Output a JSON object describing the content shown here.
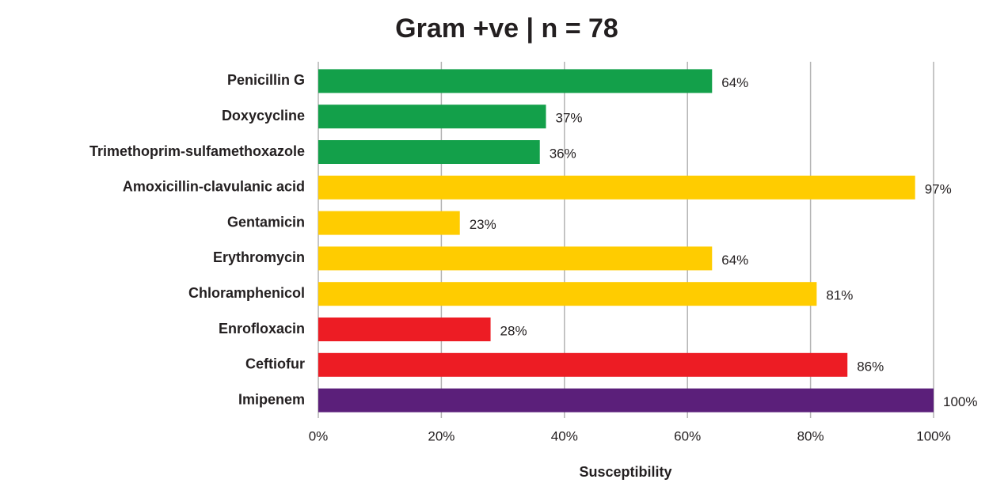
{
  "chart_data": {
    "type": "hbar",
    "title": "Gram +ve | n = 78",
    "x_label": "Susceptibility",
    "categories": [
      "Penicillin G",
      "Doxycycline",
      "Trimethoprim-sulfamethoxazole",
      "Amoxicillin-clavulanic acid",
      "Gentamicin",
      "Erythromycin",
      "Chloramphenicol",
      "Enrofloxacin",
      "Ceftiofur",
      "Imipenem"
    ],
    "values": [
      64,
      37,
      36,
      97,
      23,
      64,
      81,
      28,
      86,
      100
    ],
    "value_labels": [
      "64%",
      "37%",
      "36%",
      "97%",
      "23%",
      "64%",
      "81%",
      "28%",
      "86%",
      "100%"
    ],
    "colors": [
      "#13a04a",
      "#13a04a",
      "#13a04a",
      "#ffcc00",
      "#ffcc00",
      "#ffcc00",
      "#ffcc00",
      "#ed1c24",
      "#ed1c24",
      "#5b1f7a"
    ],
    "xlim": [
      0,
      100
    ],
    "xticks": [
      {
        "value": 0,
        "label": "0%"
      },
      {
        "value": 20,
        "label": "20%"
      },
      {
        "value": 40,
        "label": "40%"
      },
      {
        "value": 60,
        "label": "60%"
      },
      {
        "value": 80,
        "label": "80%"
      },
      {
        "value": 100,
        "label": "100%"
      }
    ],
    "grid": true
  }
}
